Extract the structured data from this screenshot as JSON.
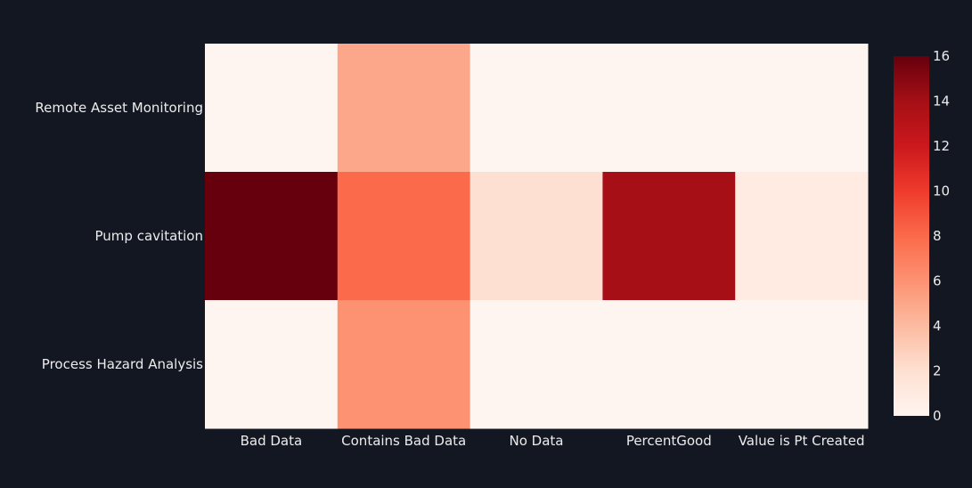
{
  "chart_data": {
    "type": "heatmap",
    "title": "",
    "xlabel": "",
    "ylabel": "",
    "x": [
      "Bad Data",
      "Contains Bad Data",
      "No Data",
      "PercentGood",
      "Value is Pt Created"
    ],
    "y": [
      "Remote Asset Monitoring",
      "Pump cavitation",
      "Process Hazard Analysis"
    ],
    "z": [
      [
        0,
        5,
        0,
        0,
        0
      ],
      [
        16,
        8,
        2,
        14,
        1
      ],
      [
        0,
        6,
        0,
        0,
        0
      ]
    ],
    "zlim": [
      0,
      16
    ],
    "colorscale": "Reds",
    "colorbar": {
      "ticks": [
        0,
        2,
        4,
        6,
        8,
        10,
        12,
        14,
        16
      ]
    },
    "background_color": "#131722",
    "text_color": "#ececec"
  }
}
